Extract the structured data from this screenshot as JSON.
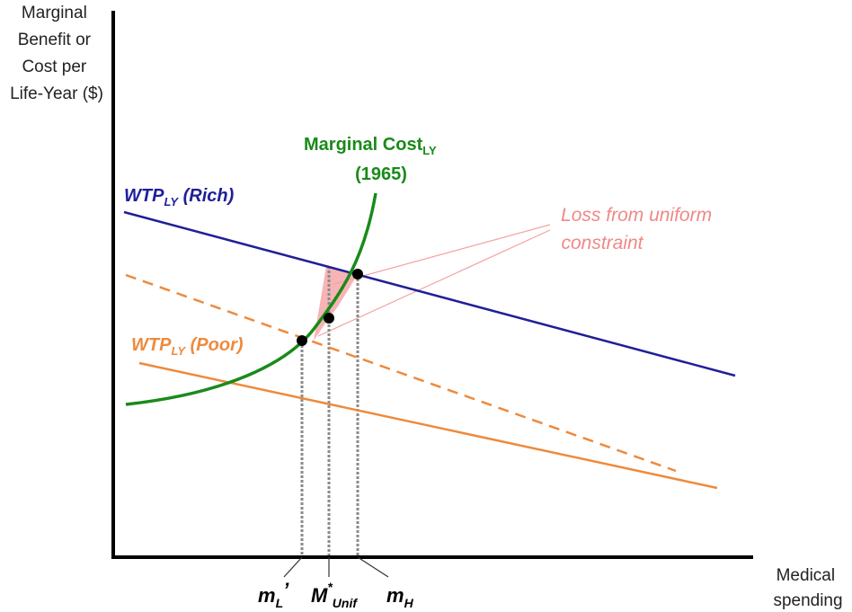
{
  "axes": {
    "y_label_lines": [
      "Marginal",
      "Benefit or",
      "Cost per",
      "Life-Year ($)"
    ],
    "x_label_lines": [
      "Medical",
      "spending"
    ]
  },
  "curves": {
    "wtp_rich": {
      "main": "WTP",
      "sub": "LY",
      "suffix": " (Rich)",
      "color": "#1f1f99"
    },
    "wtp_poor": {
      "main": "WTP",
      "sub": "LY",
      "suffix": " (Poor)",
      "color": "#ee8a3c"
    },
    "marginal_cost": {
      "main": "Marginal Cost",
      "sub": "LY",
      "line2": "(1965)",
      "color": "#1a8a1a"
    }
  },
  "annotation": {
    "loss_lines": [
      "Loss from uniform",
      "constraint"
    ],
    "color": "#f08888"
  },
  "ticks": {
    "m_low": {
      "main": "m",
      "sub": "L",
      "suffix": "’"
    },
    "m_unif": {
      "main": "M",
      "sup": "*",
      "sub": "Unif"
    },
    "m_high": {
      "main": "m",
      "sub": "H"
    }
  }
}
